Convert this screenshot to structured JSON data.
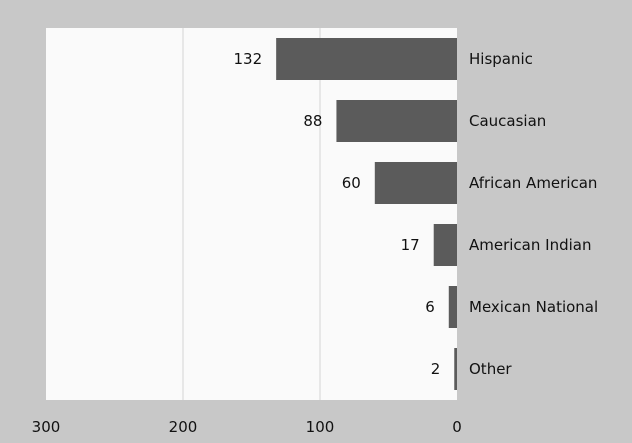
{
  "chart_data": {
    "type": "bar",
    "orientation": "horizontal",
    "x_axis_reversed": true,
    "categories": [
      "Hispanic",
      "Caucasian",
      "African American",
      "American Indian",
      "Mexican National",
      "Other"
    ],
    "values": [
      132,
      88,
      60,
      17,
      6,
      2
    ],
    "data_labels": [
      "132",
      "88",
      "60",
      "17",
      "6",
      "2"
    ],
    "xlim": [
      0,
      300
    ],
    "x_ticks": [
      300,
      200,
      100,
      0
    ],
    "x_tick_labels": [
      "300",
      "200",
      "100",
      "0"
    ],
    "grid": "vertical",
    "legend": "none",
    "colors": {
      "bar": "#5b5b5b",
      "plot_bg": "#fafafa",
      "frame_bg": "#c8c8c8",
      "grid": "#d4d4d4"
    }
  }
}
